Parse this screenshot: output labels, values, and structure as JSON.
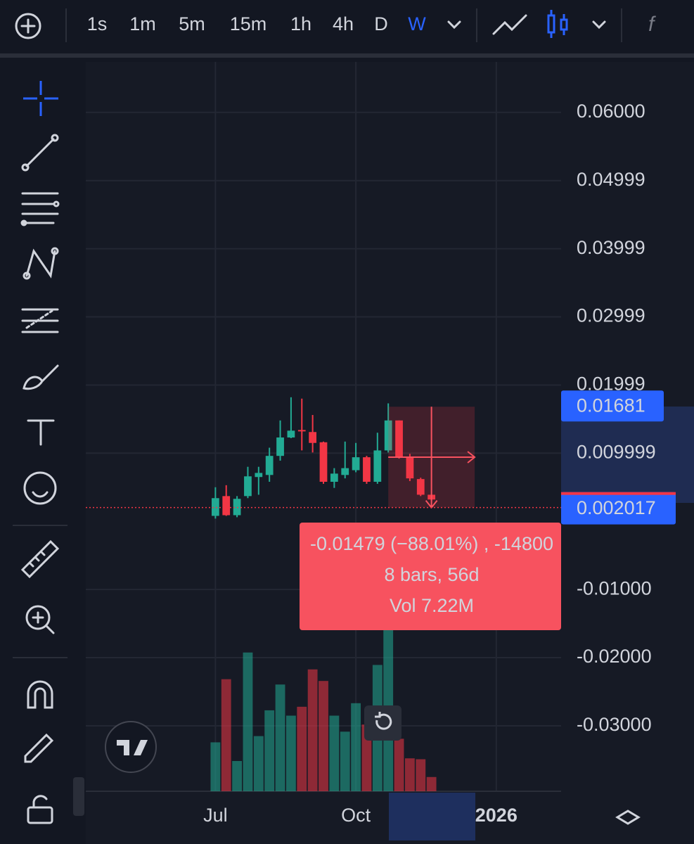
{
  "toolbar": {
    "intervals": [
      "1s",
      "1m",
      "5m",
      "15m",
      "1h",
      "4h",
      "D",
      "W"
    ],
    "active_interval": "W"
  },
  "chart_data": {
    "type": "candlestick",
    "x": [
      0,
      1,
      2,
      3,
      4,
      5,
      6,
      7,
      8,
      9,
      10,
      11,
      12,
      13,
      14,
      15,
      16,
      17,
      18,
      19,
      20
    ],
    "open": [
      0.0008,
      0.0037,
      0.0009,
      0.0037,
      0.0065,
      0.0068,
      0.0096,
      0.0123,
      0.0134,
      0.0131,
      0.0116,
      0.0058,
      0.0068,
      0.0075,
      0.0094,
      0.0058,
      0.0104,
      0.0148,
      0.0094,
      0.0062,
      0.0039
    ],
    "high": [
      0.005,
      0.0053,
      0.0037,
      0.008,
      0.008,
      0.0108,
      0.0148,
      0.0182,
      0.018,
      0.0156,
      0.0117,
      0.0078,
      0.0117,
      0.0115,
      0.0096,
      0.013,
      0.0173,
      0.0148,
      0.0099,
      0.0064,
      0.0039
    ],
    "low": [
      0.0004,
      0.0008,
      0.0006,
      0.0034,
      0.0039,
      0.0058,
      0.0089,
      0.0122,
      0.0104,
      0.0101,
      0.0055,
      0.0049,
      0.0063,
      0.0072,
      0.0055,
      0.0055,
      0.0101,
      0.0092,
      0.0059,
      0.0037,
      0.003
    ],
    "close": [
      0.0034,
      0.0009,
      0.0033,
      0.0066,
      0.0071,
      0.0096,
      0.0123,
      0.0133,
      0.0132,
      0.0115,
      0.0058,
      0.007,
      0.0078,
      0.0094,
      0.0058,
      0.0104,
      0.0148,
      0.0094,
      0.0063,
      0.0039,
      0.0032
    ],
    "volume": [
      0.55,
      1.26,
      0.34,
      1.56,
      0.62,
      0.91,
      1.2,
      0.85,
      0.95,
      1.37,
      1.24,
      0.85,
      0.67,
      0.99,
      0.75,
      1.42,
      2.57,
      0.59,
      0.37,
      0.36,
      0.16
    ],
    "up_color": "#22ab94",
    "down_color": "#f23645",
    "xlim": [
      -12,
      32
    ],
    "ylim": [
      -0.0396,
      0.0674
    ],
    "xticks": [
      {
        "value": 0,
        "label": "Jul"
      },
      {
        "value": 13,
        "label": "Oct"
      },
      {
        "value": 26,
        "label": "2026"
      }
    ],
    "yticks": [
      {
        "value": 0.06,
        "label": "0.06000"
      },
      0.04999,
      0.03999,
      0.02999,
      0.01999,
      0.009999,
      {
        "value": -0.01,
        "label": "-0.01000"
      },
      {
        "value": -0.02,
        "label": "-0.02000"
      },
      {
        "value": -0.03,
        "label": "-0.03000"
      }
    ],
    "grid": true,
    "last_price": 0.002017,
    "measure": {
      "from_x": 16,
      "to_x": 24,
      "from_price": 0.01681,
      "to_price": 0.002017,
      "lines": [
        "-0.01479 (−88.01%) , -14800",
        "8 bars, 56d",
        "Vol 7.22M"
      ]
    }
  }
}
